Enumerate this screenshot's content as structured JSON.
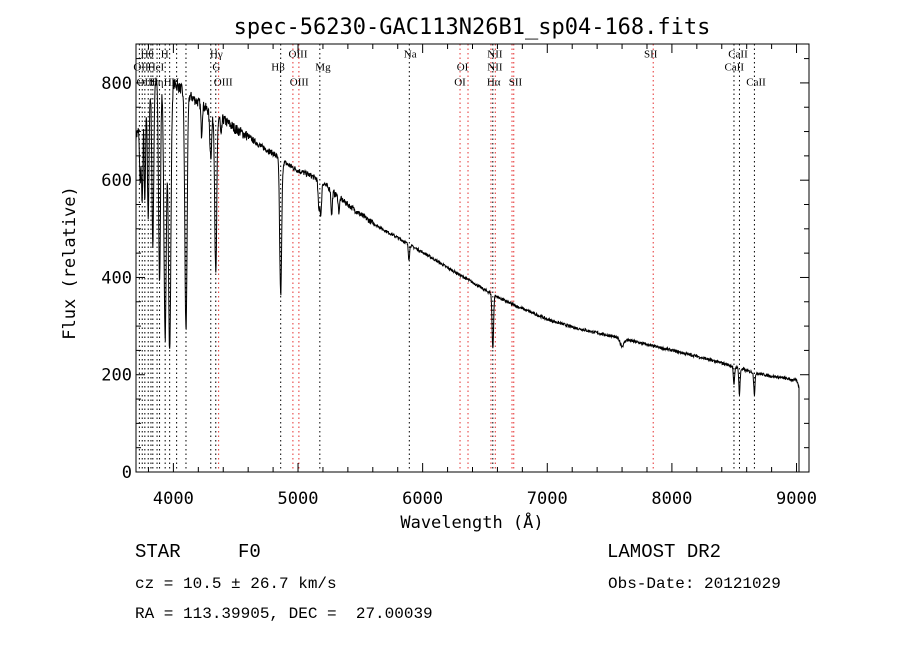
{
  "chart_data": {
    "type": "line",
    "title": "spec-56230-GAC113N26B1_sp04-168.fits",
    "xlabel": "Wavelength (Å)",
    "ylabel": "Flux (relative)",
    "xlim": [
      3700,
      9100
    ],
    "ylim": [
      0,
      880
    ],
    "xticks": [
      4000,
      5000,
      6000,
      7000,
      8000,
      9000
    ],
    "yticks": [
      0,
      200,
      400,
      600,
      800
    ],
    "grid": false,
    "continuum": {
      "x": [
        3700,
        3750,
        3800,
        3850,
        3900,
        3950,
        4000,
        4050,
        4100,
        4150,
        4200,
        4300,
        4400,
        4500,
        4600,
        4700,
        4800,
        4900,
        5000,
        5100,
        5200,
        5300,
        5400,
        5500,
        5600,
        5700,
        5800,
        5900,
        6000,
        6100,
        6200,
        6300,
        6400,
        6500,
        6600,
        6700,
        6800,
        6900,
        7000,
        7200,
        7400,
        7600,
        7800,
        8000,
        8200,
        8400,
        8500,
        8600,
        8700,
        8800,
        8900,
        9000,
        9020
      ],
      "y": [
        690,
        730,
        770,
        800,
        815,
        815,
        800,
        790,
        780,
        770,
        760,
        740,
        725,
        705,
        690,
        670,
        655,
        635,
        620,
        610,
        595,
        570,
        550,
        530,
        512,
        496,
        482,
        466,
        452,
        436,
        420,
        405,
        390,
        374,
        360,
        347,
        336,
        325,
        314,
        298,
        286,
        274,
        262,
        250,
        238,
        224,
        217,
        208,
        202,
        197,
        193,
        188,
        175
      ]
    },
    "absorption_lines": [
      {
        "x": 3734,
        "depth": 120,
        "width": 6
      },
      {
        "x": 3750,
        "depth": 180,
        "width": 5
      },
      {
        "x": 3771,
        "depth": 200,
        "width": 5
      },
      {
        "x": 3798,
        "depth": 250,
        "width": 6
      },
      {
        "x": 3835,
        "depth": 330,
        "width": 7
      },
      {
        "x": 3889,
        "depth": 420,
        "width": 8
      },
      {
        "x": 3934,
        "depth": 540,
        "width": 10
      },
      {
        "x": 3970,
        "depth": 560,
        "width": 10
      },
      {
        "x": 4101,
        "depth": 490,
        "width": 9
      },
      {
        "x": 4226,
        "depth": 60,
        "width": 5
      },
      {
        "x": 4300,
        "depth": 90,
        "width": 8
      },
      {
        "x": 4340,
        "depth": 330,
        "width": 8
      },
      {
        "x": 4383,
        "depth": 40,
        "width": 5
      },
      {
        "x": 4861,
        "depth": 280,
        "width": 8
      },
      {
        "x": 5167,
        "depth": 60,
        "width": 6
      },
      {
        "x": 5183,
        "depth": 70,
        "width": 6
      },
      {
        "x": 5270,
        "depth": 50,
        "width": 5
      },
      {
        "x": 5328,
        "depth": 30,
        "width": 5
      },
      {
        "x": 5890,
        "depth": 30,
        "width": 5
      },
      {
        "x": 6563,
        "depth": 110,
        "width": 6
      },
      {
        "x": 7600,
        "depth": 15,
        "width": 15
      },
      {
        "x": 8498,
        "depth": 40,
        "width": 5
      },
      {
        "x": 8542,
        "depth": 55,
        "width": 5
      },
      {
        "x": 8662,
        "depth": 45,
        "width": 5
      }
    ],
    "reference_lines": [
      {
        "x": 3727,
        "color": "#000000"
      },
      {
        "x": 3750,
        "color": "#000000"
      },
      {
        "x": 3771,
        "color": "#000000"
      },
      {
        "x": 3798,
        "color": "#000000"
      },
      {
        "x": 3820,
        "color": "#000000"
      },
      {
        "x": 3835,
        "color": "#000000"
      },
      {
        "x": 3869,
        "color": "#000000"
      },
      {
        "x": 3889,
        "color": "#000000"
      },
      {
        "x": 3934,
        "color": "#000000"
      },
      {
        "x": 3970,
        "color": "#000000"
      },
      {
        "x": 4026,
        "color": "#000000"
      },
      {
        "x": 4101,
        "color": "#000000"
      },
      {
        "x": 4300,
        "color": "#000000"
      },
      {
        "x": 4340,
        "color": "#000000"
      },
      {
        "x": 4363,
        "color": "#e53030"
      },
      {
        "x": 4861,
        "color": "#000000"
      },
      {
        "x": 4959,
        "color": "#e53030"
      },
      {
        "x": 5007,
        "color": "#e53030"
      },
      {
        "x": 5175,
        "color": "#000000"
      },
      {
        "x": 5893,
        "color": "#000000"
      },
      {
        "x": 6300,
        "color": "#e53030"
      },
      {
        "x": 6364,
        "color": "#e53030"
      },
      {
        "x": 6548,
        "color": "#e53030"
      },
      {
        "x": 6563,
        "color": "#000000"
      },
      {
        "x": 6583,
        "color": "#e53030"
      },
      {
        "x": 6717,
        "color": "#e53030"
      },
      {
        "x": 6731,
        "color": "#e53030"
      },
      {
        "x": 7850,
        "color": "#e53030"
      },
      {
        "x": 8498,
        "color": "#000000"
      },
      {
        "x": 8542,
        "color": "#000000"
      },
      {
        "x": 8662,
        "color": "#000000"
      }
    ],
    "line_labels": [
      {
        "text": "Hθ",
        "x": 3790,
        "y": 852
      },
      {
        "text": "H",
        "x": 3930,
        "y": 852
      },
      {
        "text": "OII",
        "x": 3740,
        "y": 826
      },
      {
        "text": "HeI",
        "x": 3860,
        "y": 826
      },
      {
        "text": "OIII",
        "x": 3780,
        "y": 795
      },
      {
        "text": "Hη",
        "x": 3866,
        "y": 795
      },
      {
        "text": "H",
        "x": 3955,
        "y": 795
      },
      {
        "text": "H",
        "x": 4015,
        "y": 795
      },
      {
        "text": "Hγ",
        "x": 4345,
        "y": 852
      },
      {
        "text": "G",
        "x": 4345,
        "y": 826
      },
      {
        "text": "OIII",
        "x": 4400,
        "y": 795
      },
      {
        "text": "OIII",
        "x": 5000,
        "y": 852
      },
      {
        "text": "Hβ",
        "x": 4840,
        "y": 826
      },
      {
        "text": "Mg",
        "x": 5200,
        "y": 826
      },
      {
        "text": "OIII",
        "x": 5010,
        "y": 795
      },
      {
        "text": "Na",
        "x": 5900,
        "y": 852
      },
      {
        "text": "OI",
        "x": 6320,
        "y": 826
      },
      {
        "text": "OI",
        "x": 6300,
        "y": 795
      },
      {
        "text": "NII",
        "x": 6580,
        "y": 852
      },
      {
        "text": "NII",
        "x": 6580,
        "y": 826
      },
      {
        "text": "Hα",
        "x": 6570,
        "y": 795
      },
      {
        "text": "SII",
        "x": 6745,
        "y": 795
      },
      {
        "text": "SII",
        "x": 7830,
        "y": 852
      },
      {
        "text": "CaII",
        "x": 8530,
        "y": 852
      },
      {
        "text": "CaII",
        "x": 8500,
        "y": 826
      },
      {
        "text": "CaII",
        "x": 8675,
        "y": 795
      }
    ]
  },
  "info": {
    "object_class": "STAR",
    "subclass": "F0",
    "survey": "LAMOST DR2",
    "redshift_text": "cz = 10.5 ± 26.7 km/s",
    "obs_date_text": "Obs-Date: 20121029",
    "coords_text": "RA = 113.39905, DEC =  27.00039"
  }
}
